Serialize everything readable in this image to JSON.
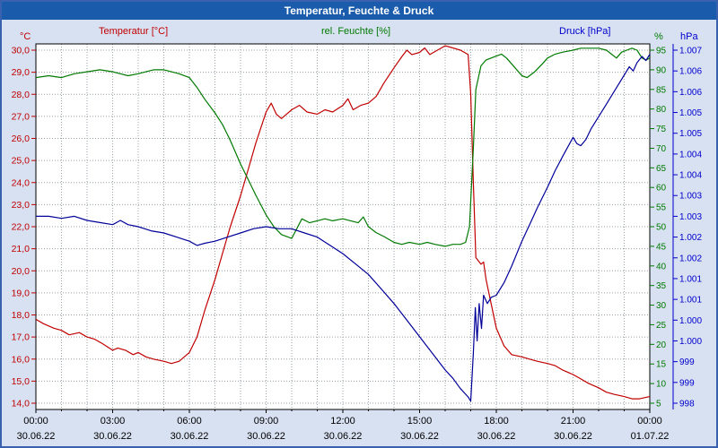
{
  "title_bar": {
    "title": "Temperatur, Feuchte & Druck"
  },
  "legend": {
    "temperature": "Temperatur [°C]",
    "humidity": "rel. Feuchte [%]",
    "pressure": "Druck [hPa]"
  },
  "axis_units": {
    "left": "°C",
    "right_inner": "%",
    "right_outer": "hPa"
  },
  "colors": {
    "page_background": "#d8e1f2",
    "title_bar": "#1a5cab",
    "border": "#3a60b0",
    "temperature": "#c00000",
    "humidity": "#007a00",
    "pressure_line": "#000099",
    "pressure_label": "#0000cc",
    "grid": "#9aa0a8"
  },
  "chart_data": {
    "type": "line",
    "title": "Temperatur, Feuchte & Druck",
    "grid": true,
    "x_axis": {
      "range_hours": [
        0,
        24
      ],
      "minor_grid_hours": 1,
      "tick_hours": [
        0,
        3,
        6,
        9,
        12,
        15,
        18,
        21,
        24
      ],
      "tick_labels": [
        "00:00",
        "03:00",
        "06:00",
        "09:00",
        "12:00",
        "15:00",
        "18:00",
        "21:00",
        "00:00"
      ],
      "date_labels": [
        "30.06.22",
        "30.06.22",
        "30.06.22",
        "30.06.22",
        "30.06.22",
        "30.06.22",
        "30.06.22",
        "30.06.22",
        "01.07.22"
      ]
    },
    "y_axes": {
      "temperature": {
        "unit": "°C",
        "color": "#c00000",
        "tick_min": 14,
        "tick_max": 30,
        "tick_labels": [
          "30,0",
          "29,0",
          "28,0",
          "27,0",
          "26,0",
          "25,0",
          "24,0",
          "23,0",
          "22,0",
          "21,0",
          "20,0",
          "19,0",
          "18,0",
          "17,0",
          "16,0",
          "15,0",
          "14,0"
        ]
      },
      "humidity": {
        "unit": "%",
        "color": "#007a00",
        "tick_min": 5,
        "tick_max": 95,
        "tick_labels": [
          "95",
          "90",
          "85",
          "80",
          "75",
          "70",
          "65",
          "60",
          "55",
          "50",
          "45",
          "40",
          "35",
          "30",
          "25",
          "20",
          "15",
          "10",
          "5"
        ]
      },
      "pressure": {
        "unit": "hPa",
        "color": "#0000cc",
        "line_color": "#000099",
        "tick_min": 998,
        "tick_max": 1006.5,
        "tick_labels": [
          "1.007",
          "1.006",
          "1.006",
          "1.005",
          "1.005",
          "1.004",
          "1.004",
          "1.003",
          "1.003",
          "1.002",
          "1.002",
          "1.001",
          "1.001",
          "1.000",
          "1.000",
          "999",
          "999",
          "998"
        ]
      }
    },
    "series": [
      {
        "name": "Temperatur",
        "unit": "°C",
        "axis": "temperature",
        "color": "#c00000",
        "points": [
          [
            0,
            17.8
          ],
          [
            0.3,
            17.6
          ],
          [
            0.7,
            17.4
          ],
          [
            1,
            17.3
          ],
          [
            1.3,
            17.1
          ],
          [
            1.7,
            17.2
          ],
          [
            2,
            17.0
          ],
          [
            2.3,
            16.9
          ],
          [
            2.6,
            16.7
          ],
          [
            3,
            16.4
          ],
          [
            3.2,
            16.5
          ],
          [
            3.5,
            16.4
          ],
          [
            3.8,
            16.2
          ],
          [
            4,
            16.3
          ],
          [
            4.3,
            16.1
          ],
          [
            4.6,
            16.0
          ],
          [
            5,
            15.9
          ],
          [
            5.3,
            15.8
          ],
          [
            5.6,
            15.9
          ],
          [
            6,
            16.3
          ],
          [
            6.3,
            17.0
          ],
          [
            6.6,
            18.2
          ],
          [
            7,
            19.6
          ],
          [
            7.3,
            20.8
          ],
          [
            7.6,
            22.0
          ],
          [
            8,
            23.4
          ],
          [
            8.3,
            24.6
          ],
          [
            8.6,
            25.8
          ],
          [
            9,
            27.2
          ],
          [
            9.2,
            27.6
          ],
          [
            9.4,
            27.1
          ],
          [
            9.6,
            26.9
          ],
          [
            9.8,
            27.1
          ],
          [
            10,
            27.3
          ],
          [
            10.3,
            27.5
          ],
          [
            10.6,
            27.2
          ],
          [
            11,
            27.1
          ],
          [
            11.3,
            27.3
          ],
          [
            11.6,
            27.2
          ],
          [
            12,
            27.5
          ],
          [
            12.2,
            27.8
          ],
          [
            12.4,
            27.3
          ],
          [
            12.7,
            27.5
          ],
          [
            13,
            27.6
          ],
          [
            13.3,
            27.9
          ],
          [
            13.6,
            28.5
          ],
          [
            14,
            29.2
          ],
          [
            14.3,
            29.7
          ],
          [
            14.5,
            30.0
          ],
          [
            14.7,
            29.8
          ],
          [
            15,
            29.9
          ],
          [
            15.2,
            30.1
          ],
          [
            15.4,
            29.8
          ],
          [
            15.7,
            30.0
          ],
          [
            16,
            30.2
          ],
          [
            16.3,
            30.1
          ],
          [
            16.6,
            30.0
          ],
          [
            16.9,
            29.8
          ],
          [
            17.0,
            28.0
          ],
          [
            17.1,
            24.0
          ],
          [
            17.2,
            20.6
          ],
          [
            17.4,
            20.3
          ],
          [
            17.5,
            20.4
          ],
          [
            17.6,
            19.6
          ],
          [
            17.8,
            18.5
          ],
          [
            18,
            17.4
          ],
          [
            18.3,
            16.6
          ],
          [
            18.6,
            16.2
          ],
          [
            19,
            16.1
          ],
          [
            19.3,
            16.0
          ],
          [
            19.6,
            15.9
          ],
          [
            20,
            15.8
          ],
          [
            20.3,
            15.7
          ],
          [
            20.6,
            15.5
          ],
          [
            21,
            15.3
          ],
          [
            21.3,
            15.1
          ],
          [
            21.6,
            14.9
          ],
          [
            22,
            14.7
          ],
          [
            22.3,
            14.5
          ],
          [
            22.6,
            14.4
          ],
          [
            23,
            14.3
          ],
          [
            23.3,
            14.2
          ],
          [
            23.6,
            14.2
          ],
          [
            24,
            14.3
          ]
        ]
      },
      {
        "name": "rel. Feuchte",
        "unit": "%",
        "axis": "humidity",
        "color": "#007a00",
        "points": [
          [
            0,
            88
          ],
          [
            0.5,
            88.5
          ],
          [
            1,
            88
          ],
          [
            1.5,
            89
          ],
          [
            2,
            89.5
          ],
          [
            2.5,
            90
          ],
          [
            3,
            89.5
          ],
          [
            3.3,
            89
          ],
          [
            3.6,
            88.5
          ],
          [
            4,
            89
          ],
          [
            4.3,
            89.5
          ],
          [
            4.6,
            90
          ],
          [
            5,
            90
          ],
          [
            5.3,
            89.5
          ],
          [
            5.6,
            89
          ],
          [
            6,
            88
          ],
          [
            6.3,
            85.5
          ],
          [
            6.6,
            82.5
          ],
          [
            7,
            79
          ],
          [
            7.3,
            76
          ],
          [
            7.6,
            72
          ],
          [
            8,
            66
          ],
          [
            8.3,
            62
          ],
          [
            8.6,
            58
          ],
          [
            9,
            53
          ],
          [
            9.3,
            50
          ],
          [
            9.6,
            48
          ],
          [
            10,
            47
          ],
          [
            10.2,
            49.5
          ],
          [
            10.4,
            52
          ],
          [
            10.7,
            51
          ],
          [
            11,
            51.5
          ],
          [
            11.3,
            52
          ],
          [
            11.6,
            51.5
          ],
          [
            12,
            52
          ],
          [
            12.3,
            51.5
          ],
          [
            12.6,
            51
          ],
          [
            12.8,
            52.5
          ],
          [
            13,
            50
          ],
          [
            13.3,
            48.5
          ],
          [
            13.6,
            47.5
          ],
          [
            14,
            46
          ],
          [
            14.3,
            45.5
          ],
          [
            14.6,
            46
          ],
          [
            15,
            45.5
          ],
          [
            15.3,
            46
          ],
          [
            15.6,
            45.5
          ],
          [
            16,
            45
          ],
          [
            16.3,
            45.5
          ],
          [
            16.6,
            45.5
          ],
          [
            16.8,
            46
          ],
          [
            16.95,
            50
          ],
          [
            17.1,
            70
          ],
          [
            17.2,
            85
          ],
          [
            17.4,
            91
          ],
          [
            17.6,
            92.5
          ],
          [
            18,
            93.5
          ],
          [
            18.2,
            94
          ],
          [
            18.4,
            93
          ],
          [
            18.6,
            91.5
          ],
          [
            19,
            88.5
          ],
          [
            19.2,
            88
          ],
          [
            19.5,
            89.5
          ],
          [
            19.8,
            91.5
          ],
          [
            20,
            93
          ],
          [
            20.3,
            94
          ],
          [
            20.6,
            94.5
          ],
          [
            21,
            95
          ],
          [
            21.3,
            95.5
          ],
          [
            21.6,
            95.5
          ],
          [
            22,
            95.5
          ],
          [
            22.3,
            95
          ],
          [
            22.5,
            94
          ],
          [
            22.7,
            93
          ],
          [
            22.9,
            94.5
          ],
          [
            23.1,
            95
          ],
          [
            23.3,
            95.5
          ],
          [
            23.5,
            95
          ],
          [
            23.7,
            93
          ],
          [
            23.85,
            92.5
          ],
          [
            24,
            93
          ]
        ]
      },
      {
        "name": "Druck",
        "unit": "hPa",
        "axis": "pressure",
        "color": "#000099",
        "points": [
          [
            0,
            1002.5
          ],
          [
            0.5,
            1002.5
          ],
          [
            1,
            1002.45
          ],
          [
            1.5,
            1002.5
          ],
          [
            2,
            1002.4
          ],
          [
            2.5,
            1002.35
          ],
          [
            3,
            1002.3
          ],
          [
            3.3,
            1002.4
          ],
          [
            3.6,
            1002.3
          ],
          [
            4,
            1002.25
          ],
          [
            4.5,
            1002.15
          ],
          [
            5,
            1002.1
          ],
          [
            5.5,
            1002.0
          ],
          [
            6,
            1001.9
          ],
          [
            6.3,
            1001.8
          ],
          [
            6.6,
            1001.85
          ],
          [
            7,
            1001.9
          ],
          [
            7.5,
            1002.0
          ],
          [
            8,
            1002.1
          ],
          [
            8.5,
            1002.2
          ],
          [
            9,
            1002.25
          ],
          [
            9.5,
            1002.2
          ],
          [
            10,
            1002.2
          ],
          [
            10.5,
            1002.1
          ],
          [
            11,
            1002.0
          ],
          [
            11.5,
            1001.8
          ],
          [
            12,
            1001.6
          ],
          [
            12.5,
            1001.35
          ],
          [
            13,
            1001.1
          ],
          [
            13.5,
            1000.75
          ],
          [
            14,
            1000.4
          ],
          [
            14.5,
            1000.0
          ],
          [
            15,
            999.6
          ],
          [
            15.5,
            999.2
          ],
          [
            16,
            998.8
          ],
          [
            16.3,
            998.6
          ],
          [
            16.6,
            998.35
          ],
          [
            16.9,
            998.15
          ],
          [
            17.0,
            998.05
          ],
          [
            17.1,
            999.2
          ],
          [
            17.18,
            1000.3
          ],
          [
            17.25,
            999.5
          ],
          [
            17.33,
            1000.4
          ],
          [
            17.42,
            999.8
          ],
          [
            17.5,
            1000.6
          ],
          [
            17.65,
            1000.4
          ],
          [
            17.8,
            1000.55
          ],
          [
            18,
            1000.6
          ],
          [
            18.3,
            1000.9
          ],
          [
            18.6,
            1001.3
          ],
          [
            19,
            1001.9
          ],
          [
            19.3,
            1002.3
          ],
          [
            19.6,
            1002.7
          ],
          [
            20,
            1003.2
          ],
          [
            20.3,
            1003.6
          ],
          [
            20.6,
            1003.95
          ],
          [
            21,
            1004.4
          ],
          [
            21.15,
            1004.25
          ],
          [
            21.3,
            1004.2
          ],
          [
            21.5,
            1004.35
          ],
          [
            21.7,
            1004.6
          ],
          [
            22,
            1004.9
          ],
          [
            22.3,
            1005.2
          ],
          [
            22.6,
            1005.5
          ],
          [
            23,
            1005.9
          ],
          [
            23.2,
            1006.1
          ],
          [
            23.35,
            1006.0
          ],
          [
            23.5,
            1006.2
          ],
          [
            23.7,
            1006.35
          ],
          [
            23.85,
            1006.25
          ],
          [
            24,
            1006.4
          ]
        ]
      }
    ]
  }
}
